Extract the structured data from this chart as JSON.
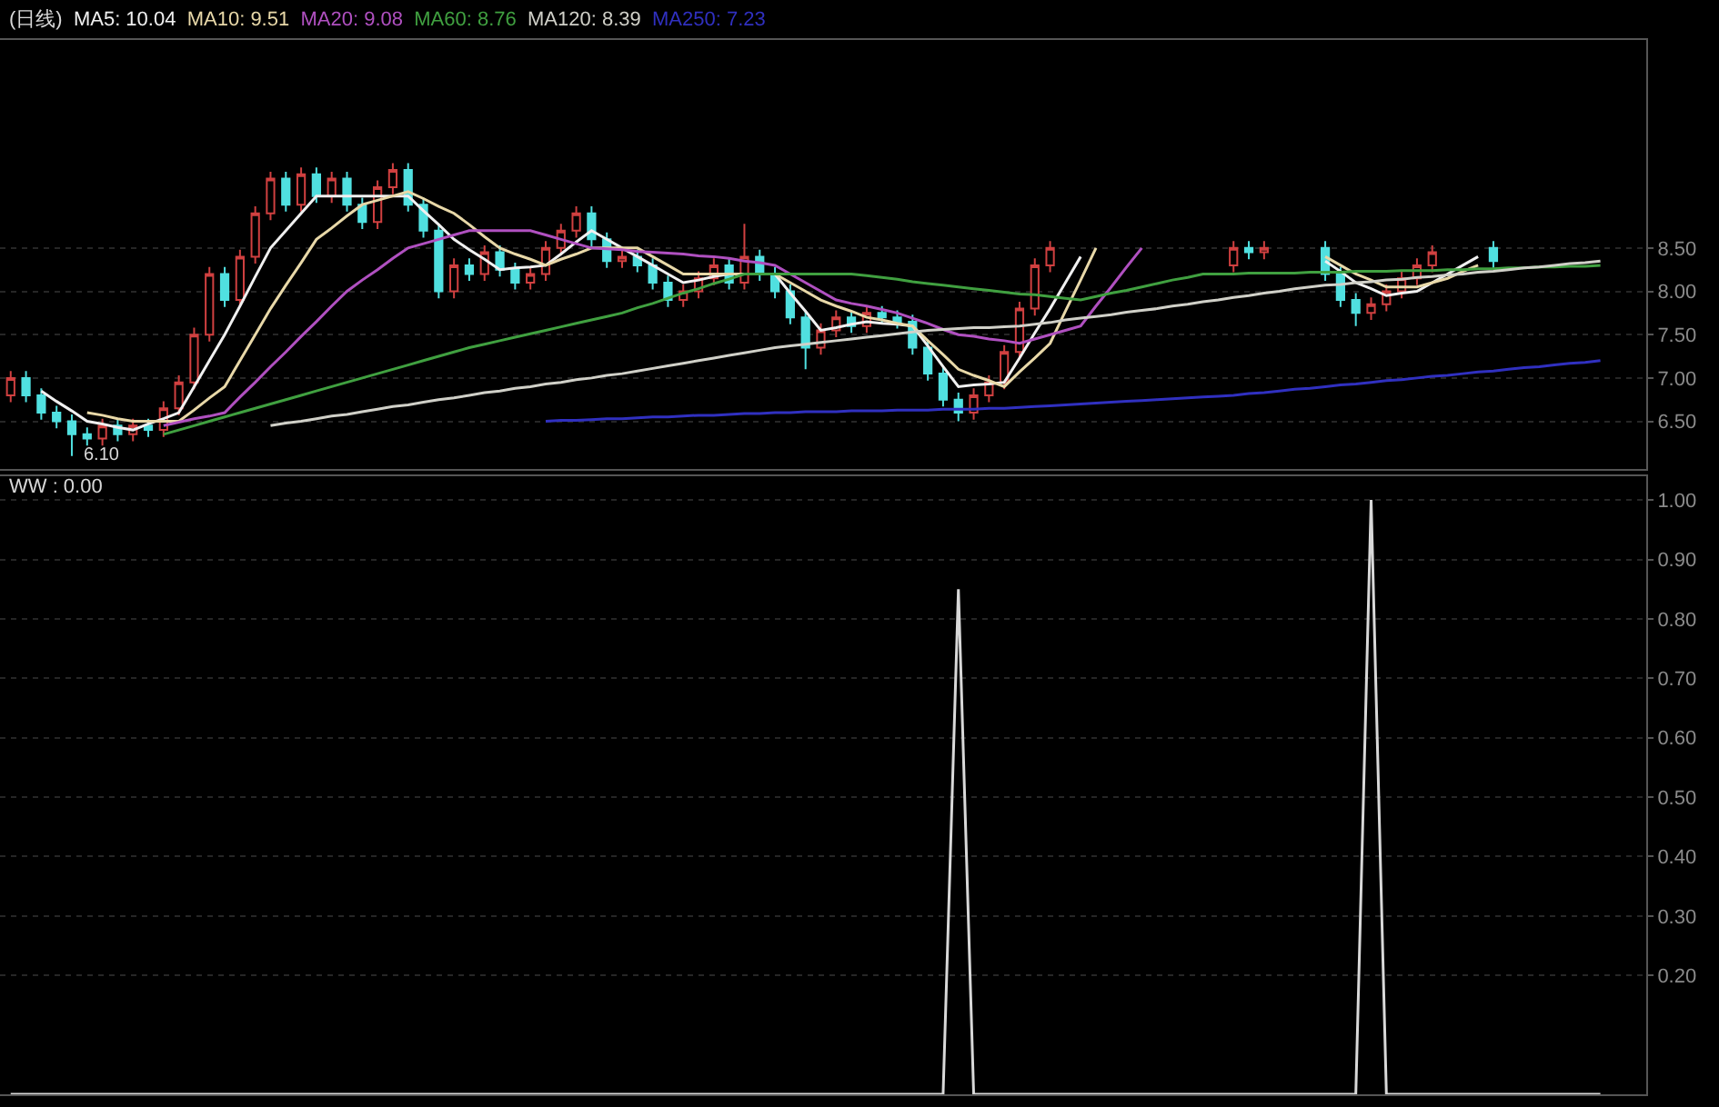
{
  "chart_data": [
    {
      "type": "candlestick",
      "title": "(日线)",
      "categories": [
        null,
        null,
        null,
        null,
        null,
        null,
        null,
        null,
        null,
        null,
        null,
        null,
        null,
        null,
        null,
        null,
        null,
        null,
        null,
        null,
        null,
        null,
        null,
        null,
        null,
        null,
        null,
        null,
        null,
        null,
        null,
        null,
        null,
        null,
        null,
        null,
        null,
        null,
        null,
        null,
        null,
        null,
        null,
        null,
        null,
        null,
        null,
        null,
        null,
        null,
        null,
        null,
        null,
        null,
        null,
        null,
        null,
        null,
        null,
        null,
        null,
        null,
        null,
        null,
        null,
        null,
        null,
        null,
        null,
        null,
        null,
        null,
        null,
        null,
        null,
        null,
        null,
        null,
        null,
        null,
        null,
        null,
        null,
        null,
        null,
        null,
        null,
        null,
        null,
        null,
        null,
        null,
        null,
        null,
        null,
        null,
        null,
        null,
        null,
        null,
        null,
        null,
        null,
        null,
        null
      ],
      "ohlc": [
        [
          6.8,
          7.08,
          6.72,
          7.0
        ],
        [
          7.0,
          7.08,
          6.72,
          6.8
        ],
        [
          6.8,
          6.88,
          6.52,
          6.6
        ],
        [
          6.6,
          6.68,
          6.42,
          6.5
        ],
        [
          6.5,
          6.58,
          6.1,
          6.35
        ],
        [
          6.35,
          6.43,
          6.22,
          6.3
        ],
        [
          6.3,
          6.53,
          6.22,
          6.45
        ],
        [
          6.45,
          6.53,
          6.27,
          6.35
        ],
        [
          6.35,
          6.53,
          6.27,
          6.45
        ],
        [
          6.45,
          6.53,
          6.32,
          6.4
        ],
        [
          6.4,
          6.73,
          6.32,
          6.65
        ],
        [
          6.65,
          7.03,
          6.57,
          6.95
        ],
        [
          6.95,
          7.58,
          6.87,
          7.5
        ],
        [
          7.5,
          8.28,
          7.42,
          8.2
        ],
        [
          8.2,
          8.28,
          7.82,
          7.9
        ],
        [
          7.9,
          8.48,
          7.82,
          8.4
        ],
        [
          8.4,
          8.98,
          8.32,
          8.9
        ],
        [
          8.9,
          9.38,
          8.82,
          9.3
        ],
        [
          9.3,
          9.38,
          8.92,
          9.0
        ],
        [
          9.0,
          9.43,
          8.92,
          9.35
        ],
        [
          9.35,
          9.43,
          9.02,
          9.1
        ],
        [
          9.1,
          9.38,
          9.02,
          9.3
        ],
        [
          9.3,
          9.38,
          8.92,
          9.0
        ],
        [
          9.0,
          9.08,
          8.72,
          8.8
        ],
        [
          8.8,
          9.28,
          8.72,
          9.2
        ],
        [
          9.2,
          9.48,
          9.12,
          9.4
        ],
        [
          9.4,
          9.48,
          8.92,
          9.0
        ],
        [
          9.0,
          9.08,
          8.62,
          8.7
        ],
        [
          8.7,
          8.78,
          7.92,
          8.0
        ],
        [
          8.0,
          8.38,
          7.92,
          8.3
        ],
        [
          8.3,
          8.38,
          8.12,
          8.2
        ],
        [
          8.2,
          8.53,
          8.12,
          8.45
        ],
        [
          8.45,
          8.53,
          8.17,
          8.25
        ],
        [
          8.25,
          8.33,
          8.02,
          8.1
        ],
        [
          8.1,
          8.28,
          8.02,
          8.2
        ],
        [
          8.2,
          8.58,
          8.12,
          8.5
        ],
        [
          8.5,
          8.78,
          8.42,
          8.7
        ],
        [
          8.7,
          8.98,
          8.62,
          8.9
        ],
        [
          8.9,
          8.98,
          8.52,
          8.6
        ],
        [
          8.6,
          8.68,
          8.27,
          8.35
        ],
        [
          8.35,
          8.48,
          8.27,
          8.4
        ],
        [
          8.4,
          8.48,
          8.22,
          8.3
        ],
        [
          8.3,
          8.38,
          8.02,
          8.1
        ],
        [
          8.1,
          8.18,
          7.82,
          7.9
        ],
        [
          7.9,
          8.08,
          7.82,
          8.0
        ],
        [
          8.0,
          8.23,
          7.92,
          8.15
        ],
        [
          8.15,
          8.38,
          8.07,
          8.3
        ],
        [
          8.3,
          8.38,
          8.02,
          8.1
        ],
        [
          8.1,
          8.78,
          8.02,
          8.4
        ],
        [
          8.4,
          8.48,
          8.12,
          8.2
        ],
        [
          8.2,
          8.28,
          7.92,
          8.0
        ],
        [
          8.0,
          8.08,
          7.62,
          7.7
        ],
        [
          7.7,
          7.78,
          7.1,
          7.35
        ],
        [
          7.35,
          7.63,
          7.27,
          7.55
        ],
        [
          7.55,
          7.78,
          7.47,
          7.7
        ],
        [
          7.7,
          7.78,
          7.52,
          7.6
        ],
        [
          7.6,
          7.83,
          7.52,
          7.75
        ],
        [
          7.75,
          7.83,
          7.62,
          7.7
        ],
        [
          7.7,
          7.78,
          7.57,
          7.65
        ],
        [
          7.65,
          7.73,
          7.27,
          7.35
        ],
        [
          7.35,
          7.43,
          6.97,
          7.05
        ],
        [
          7.05,
          7.13,
          6.67,
          6.75
        ],
        [
          6.75,
          6.83,
          6.5,
          6.6
        ],
        [
          6.6,
          6.88,
          6.52,
          6.8
        ],
        [
          6.8,
          7.03,
          6.72,
          6.95
        ],
        [
          6.95,
          7.38,
          6.87,
          7.3
        ],
        [
          7.3,
          7.88,
          7.22,
          7.8
        ],
        [
          7.8,
          8.38,
          7.72,
          8.3
        ],
        [
          8.3,
          8.58,
          8.22,
          8.5
        ],
        null,
        null,
        null,
        null,
        null,
        null,
        null,
        null,
        null,
        null,
        null,
        [
          8.3,
          8.58,
          8.22,
          8.5
        ],
        [
          8.5,
          8.58,
          8.37,
          8.45
        ],
        [
          8.45,
          8.58,
          8.37,
          8.5
        ],
        null,
        null,
        null,
        [
          8.5,
          8.58,
          8.12,
          8.2
        ],
        [
          8.2,
          8.28,
          7.82,
          7.9
        ],
        [
          7.9,
          7.98,
          7.6,
          7.75
        ],
        [
          7.75,
          7.93,
          7.67,
          7.85
        ],
        [
          7.85,
          8.08,
          7.77,
          8.0
        ],
        [
          8.0,
          8.23,
          7.92,
          8.15
        ],
        [
          8.15,
          8.38,
          8.07,
          8.3
        ],
        [
          8.3,
          8.53,
          8.22,
          8.45
        ],
        null,
        null,
        null,
        [
          8.5,
          8.58,
          8.27,
          8.35
        ],
        null,
        null,
        null,
        null,
        null,
        null,
        null
      ],
      "colors": [
        "#d04040",
        "#50e0e0",
        "#50e0e0",
        "#50e0e0",
        "#50e0e0",
        "#50e0e0",
        "#d04040",
        "#50e0e0",
        "#d04040",
        "#50e0e0",
        "#d04040",
        "#d04040",
        "#d04040",
        "#d04040",
        "#50e0e0",
        "#d04040",
        "#d04040",
        "#d04040",
        "#50e0e0",
        "#d04040",
        "#50e0e0",
        "#d04040",
        "#50e0e0",
        "#50e0e0",
        "#d04040",
        "#d04040",
        "#50e0e0",
        "#50e0e0",
        "#50e0e0",
        "#d04040",
        "#50e0e0",
        "#d04040",
        "#50e0e0",
        "#50e0e0",
        "#d04040",
        "#d04040",
        "#d04040",
        "#d04040",
        "#50e0e0",
        "#50e0e0",
        "#d04040",
        "#50e0e0",
        "#50e0e0",
        "#50e0e0",
        "#d04040",
        "#d04040",
        "#d04040",
        "#50e0e0",
        "#d04040",
        "#50e0e0",
        "#50e0e0",
        "#50e0e0",
        "#50e0e0",
        "#d04040",
        "#d04040",
        "#50e0e0",
        "#d04040",
        "#50e0e0",
        "#50e0e0",
        "#50e0e0",
        "#50e0e0",
        "#50e0e0",
        "#50e0e0",
        "#d04040",
        "#d04040",
        "#d04040",
        "#d04040",
        "#d04040",
        "#d04040",
        null,
        null,
        null,
        null,
        null,
        null,
        null,
        null,
        null,
        null,
        null,
        "#d04040",
        "#50e0e0",
        "#d04040",
        null,
        null,
        null,
        "#50e0e0",
        "#50e0e0",
        "#50e0e0",
        "#d04040",
        "#d04040",
        "#d04040",
        "#d04040",
        "#d04040",
        null,
        null,
        null,
        "#50e0e0",
        null,
        null,
        null,
        null,
        null,
        null,
        null
      ],
      "series": [
        {
          "type": "line",
          "name": "MA5: 10.04",
          "color": "#f0f0f0",
          "values": [
            null,
            null,
            6.85,
            6.73,
            6.62,
            6.5,
            6.47,
            6.43,
            6.4,
            6.47,
            6.53,
            6.6,
            6.9,
            7.2,
            7.5,
            7.83,
            8.17,
            8.5,
            8.7,
            8.9,
            9.1,
            9.1,
            9.1,
            9.1,
            9.1,
            9.1,
            9.1,
            8.93,
            8.77,
            8.6,
            8.48,
            8.37,
            8.25,
            8.27,
            8.28,
            8.3,
            8.43,
            8.57,
            8.7,
            8.6,
            8.5,
            8.4,
            8.3,
            8.2,
            8.1,
            8.13,
            8.17,
            8.2,
            8.2,
            8.2,
            8.2,
            7.98,
            7.77,
            7.55,
            7.58,
            7.62,
            7.65,
            7.63,
            7.62,
            7.6,
            7.37,
            7.13,
            6.9,
            6.92,
            6.93,
            6.95,
            7.23,
            7.52,
            7.8,
            8.1,
            8.4,
            null,
            null,
            null,
            null,
            null,
            null,
            null,
            null,
            null,
            null,
            null,
            null,
            null,
            null,
            null,
            8.35,
            8.23,
            8.1,
            8.03,
            7.95,
            7.98,
            8.0,
            8.1,
            8.2,
            8.3,
            8.4,
            null,
            null,
            null,
            null,
            null,
            null,
            null,
            null
          ]
        },
        {
          "type": "line",
          "name": "MA10: 9.51",
          "color": "#e8d8a8",
          "values": [
            null,
            null,
            null,
            null,
            null,
            6.6,
            6.57,
            6.53,
            6.5,
            6.5,
            6.5,
            6.5,
            6.63,
            6.77,
            6.9,
            7.2,
            7.5,
            7.8,
            8.07,
            8.33,
            8.6,
            8.73,
            8.87,
            9.0,
            9.05,
            9.1,
            9.15,
            9.07,
            8.98,
            8.9,
            8.77,
            8.63,
            8.5,
            8.43,
            8.37,
            8.3,
            8.37,
            8.43,
            8.5,
            8.5,
            8.5,
            8.5,
            8.4,
            8.3,
            8.2,
            8.2,
            8.2,
            8.2,
            8.2,
            8.2,
            8.2,
            8.1,
            8.0,
            7.9,
            7.83,
            7.77,
            7.7,
            7.67,
            7.63,
            7.6,
            7.43,
            7.27,
            7.1,
            7.03,
            6.97,
            6.9,
            7.07,
            7.23,
            7.4,
            7.77,
            8.13,
            8.5,
            null,
            null,
            null,
            null,
            null,
            null,
            null,
            null,
            null,
            null,
            null,
            null,
            null,
            null,
            8.4,
            8.3,
            8.2,
            8.13,
            8.05,
            8.05,
            8.05,
            8.1,
            8.15,
            8.23,
            8.3,
            null,
            null,
            null,
            null,
            null,
            null,
            null,
            null
          ]
        },
        {
          "type": "line",
          "name": "MA20: 9.08",
          "color": "#b050c0",
          "values": [
            null,
            null,
            null,
            null,
            null,
            null,
            null,
            null,
            null,
            null,
            6.45,
            6.49,
            6.53,
            6.56,
            6.6,
            6.78,
            6.95,
            7.13,
            7.3,
            7.48,
            7.65,
            7.83,
            8.0,
            8.13,
            8.25,
            8.38,
            8.5,
            8.55,
            8.6,
            8.65,
            8.7,
            8.7,
            8.7,
            8.7,
            8.7,
            8.65,
            8.6,
            8.55,
            8.5,
            8.49,
            8.48,
            8.46,
            8.45,
            8.44,
            8.43,
            8.41,
            8.4,
            8.38,
            8.35,
            8.33,
            8.3,
            8.2,
            8.1,
            8.0,
            7.9,
            7.86,
            7.83,
            7.79,
            7.75,
            7.69,
            7.63,
            7.56,
            7.5,
            7.48,
            7.45,
            7.43,
            7.4,
            7.45,
            7.5,
            7.55,
            7.6,
            7.83,
            8.05,
            8.28,
            8.5,
            null,
            null,
            null,
            null,
            null,
            null,
            null,
            null,
            null,
            null,
            null,
            null,
            null,
            null,
            null,
            null,
            null,
            null,
            null,
            null,
            null,
            null,
            null,
            null,
            null,
            null,
            null,
            null,
            null,
            null
          ]
        },
        {
          "type": "line",
          "name": "MA60: 8.76",
          "color": "#40a040",
          "values": [
            null,
            null,
            null,
            null,
            null,
            null,
            null,
            null,
            null,
            null,
            6.35,
            6.4,
            6.45,
            6.5,
            6.55,
            6.6,
            6.65,
            6.7,
            6.75,
            6.8,
            6.85,
            6.9,
            6.95,
            7.0,
            7.05,
            7.1,
            7.15,
            7.2,
            7.25,
            7.3,
            7.35,
            7.39,
            7.43,
            7.47,
            7.51,
            7.55,
            7.59,
            7.63,
            7.67,
            7.71,
            7.75,
            7.81,
            7.86,
            7.92,
            7.98,
            8.03,
            8.09,
            8.14,
            8.2,
            8.2,
            8.2,
            8.2,
            8.2,
            8.2,
            8.2,
            8.2,
            8.18,
            8.16,
            8.14,
            8.11,
            8.09,
            8.07,
            8.05,
            8.03,
            8.01,
            7.99,
            7.97,
            7.96,
            7.94,
            7.92,
            7.9,
            7.94,
            7.98,
            8.01,
            8.05,
            8.09,
            8.13,
            8.16,
            8.2,
            8.2,
            8.2,
            8.21,
            8.21,
            8.21,
            8.21,
            8.22,
            8.22,
            8.22,
            8.23,
            8.23,
            8.23,
            8.24,
            8.24,
            8.24,
            8.25,
            8.25,
            8.26,
            8.26,
            8.27,
            8.27,
            8.28,
            8.28,
            8.29,
            8.29,
            8.3
          ]
        },
        {
          "type": "line",
          "name": "MA120: 8.39",
          "color": "#d0d0c8",
          "values": [
            null,
            null,
            null,
            null,
            null,
            null,
            null,
            null,
            null,
            null,
            null,
            null,
            null,
            null,
            null,
            null,
            null,
            6.45,
            6.48,
            6.5,
            6.53,
            6.56,
            6.58,
            6.61,
            6.64,
            6.67,
            6.69,
            6.72,
            6.75,
            6.77,
            6.8,
            6.83,
            6.85,
            6.88,
            6.9,
            6.93,
            6.95,
            6.98,
            7.0,
            7.03,
            7.05,
            7.08,
            7.11,
            7.14,
            7.17,
            7.2,
            7.23,
            7.26,
            7.29,
            7.32,
            7.35,
            7.37,
            7.39,
            7.41,
            7.43,
            7.45,
            7.47,
            7.49,
            7.51,
            7.53,
            7.55,
            7.56,
            7.57,
            7.58,
            7.58,
            7.59,
            7.6,
            7.62,
            7.64,
            7.67,
            7.69,
            7.71,
            7.73,
            7.76,
            7.78,
            7.8,
            7.83,
            7.85,
            7.88,
            7.9,
            7.93,
            7.95,
            7.98,
            8.0,
            8.03,
            8.05,
            8.07,
            8.08,
            8.1,
            8.11,
            8.13,
            8.14,
            8.16,
            8.17,
            8.19,
            8.2,
            8.22,
            8.23,
            8.25,
            8.27,
            8.28,
            8.3,
            8.32,
            8.33,
            8.35
          ]
        },
        {
          "type": "line",
          "name": "MA250: 7.23",
          "color": "#3030c0",
          "values": [
            null,
            null,
            null,
            null,
            null,
            null,
            null,
            null,
            null,
            null,
            null,
            null,
            null,
            null,
            null,
            null,
            null,
            null,
            null,
            null,
            null,
            null,
            null,
            null,
            null,
            null,
            null,
            null,
            null,
            null,
            null,
            null,
            null,
            null,
            null,
            6.5,
            6.51,
            6.51,
            6.52,
            6.53,
            6.53,
            6.54,
            6.55,
            6.55,
            6.56,
            6.57,
            6.57,
            6.58,
            6.59,
            6.59,
            6.6,
            6.6,
            6.61,
            6.61,
            6.61,
            6.62,
            6.62,
            6.62,
            6.63,
            6.63,
            6.63,
            6.64,
            6.64,
            6.64,
            6.65,
            6.65,
            6.66,
            6.67,
            6.68,
            6.69,
            6.7,
            6.71,
            6.72,
            6.73,
            6.74,
            6.75,
            6.76,
            6.77,
            6.78,
            6.79,
            6.8,
            6.82,
            6.83,
            6.85,
            6.87,
            6.88,
            6.9,
            6.92,
            6.93,
            6.95,
            6.97,
            6.98,
            7.0,
            7.02,
            7.03,
            7.05,
            7.07,
            7.08,
            7.1,
            7.12,
            7.13,
            7.15,
            7.17,
            7.18,
            7.2
          ]
        }
      ],
      "ylim": [
        5.95,
        10.9
      ],
      "yticks": [
        {
          "value": 6.5,
          "label": "6.50"
        },
        {
          "value": 7,
          "label": "7.00"
        },
        {
          "value": 7.5,
          "label": "7.50"
        },
        {
          "value": 8,
          "label": "8.00"
        },
        {
          "value": 8.5,
          "label": "8.50"
        }
      ],
      "annotations": [
        "6.10"
      ],
      "grid": "y",
      "legend": false,
      "tick_labels": "y"
    },
    {
      "type": "line",
      "title": "WW : 0.00",
      "categories": [
        null,
        null,
        null,
        null,
        null,
        null,
        null,
        null,
        null,
        null,
        null,
        null,
        null,
        null,
        null,
        null,
        null,
        null,
        null,
        null,
        null,
        null,
        null,
        null,
        null,
        null,
        null,
        null,
        null,
        null,
        null,
        null,
        null,
        null,
        null,
        null,
        null,
        null,
        null,
        null,
        null,
        null,
        null,
        null,
        null,
        null,
        null,
        null,
        null,
        null,
        null,
        null,
        null,
        null,
        null,
        null,
        null,
        null,
        null,
        null,
        null,
        null,
        null,
        null,
        null,
        null,
        null,
        null,
        null,
        null,
        null,
        null,
        null,
        null,
        null,
        null,
        null,
        null,
        null,
        null,
        null,
        null,
        null,
        null,
        null,
        null,
        null,
        null,
        null,
        null,
        null,
        null,
        null,
        null,
        null,
        null,
        null,
        null,
        null,
        null,
        null,
        null,
        null,
        null,
        null
      ],
      "series": [
        {
          "color": "#d8d8d8",
          "values": [
            0,
            0,
            0,
            0,
            0,
            0,
            0,
            0,
            0,
            0,
            0,
            0,
            0,
            0,
            0,
            0,
            0,
            0,
            0,
            0,
            0,
            0,
            0,
            0,
            0,
            0,
            0,
            0,
            0,
            0,
            0,
            0,
            0,
            0,
            0,
            0,
            0,
            0,
            0,
            0,
            0,
            0,
            0,
            0,
            0,
            0,
            0,
            0,
            0,
            0,
            0,
            0,
            0,
            0,
            0,
            0,
            0,
            0,
            0,
            0,
            0,
            0,
            0.85,
            0,
            0,
            0,
            0,
            0,
            0,
            0,
            0,
            0,
            0,
            0,
            0,
            0,
            0,
            0,
            0,
            0,
            0,
            0,
            0,
            0,
            0,
            0,
            0,
            0,
            0,
            1.0,
            0,
            0,
            0,
            0,
            0,
            0,
            0,
            0,
            0,
            0,
            0,
            0,
            0,
            0,
            0
          ]
        }
      ],
      "ylim": [
        0,
        1.04
      ],
      "yticks": [
        {
          "value": 0.2,
          "label": "0.20"
        },
        {
          "value": 0.3,
          "label": "0.30"
        },
        {
          "value": 0.4,
          "label": "0.40"
        },
        {
          "value": 0.5,
          "label": "0.50"
        },
        {
          "value": 0.6,
          "label": "0.60"
        },
        {
          "value": 0.7,
          "label": "0.70"
        },
        {
          "value": 0.8,
          "label": "0.80"
        },
        {
          "value": 0.9,
          "label": "0.90"
        },
        {
          "value": 1.0,
          "label": "1.00"
        }
      ],
      "grid": "y",
      "legend": false,
      "tick_labels": "y"
    }
  ]
}
